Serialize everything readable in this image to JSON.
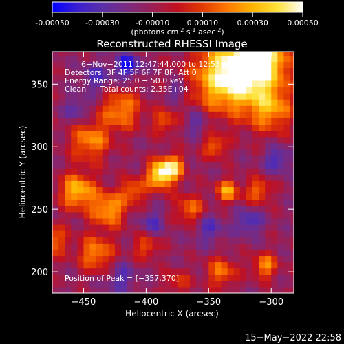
{
  "colorbar": {
    "ticks": [
      "-0.00050",
      "-0.00030",
      "-0.00010",
      "0.00010",
      "0.00030",
      "0.00050"
    ],
    "tick_values": [
      -0.0005,
      -0.0003,
      -0.0001,
      0.0001,
      0.0003,
      0.0005
    ],
    "units_main": "(photons cm",
    "units_sup1": "-2",
    "units_mid": " s",
    "units_sup2": "-1",
    "units_end": " asec",
    "units_sup3": "-2",
    "units_close": ")",
    "colormap": [
      "#0000ff",
      "#3a1fd0",
      "#5a2fa8",
      "#7a2a80",
      "#9a1f55",
      "#c21020",
      "#e23a00",
      "#ff7a00",
      "#ffb400",
      "#ffe23a",
      "#ffffff"
    ]
  },
  "chart_data": {
    "type": "heatmap",
    "title": "Reconstructed RHESSI Image",
    "xlabel": "Heliocentric X (arcsec)",
    "ylabel": "Heliocentric Y (arcsec)",
    "xlim": [
      -475,
      -282
    ],
    "ylim": [
      183,
      376
    ],
    "xticks": [
      -450,
      -400,
      -350,
      -300
    ],
    "yticks": [
      200,
      250,
      300,
      350
    ],
    "xtick_labels": [
      "−450",
      "−400",
      "−350",
      "−300"
    ],
    "ytick_labels": [
      "200",
      "250",
      "300",
      "350"
    ],
    "value_range": [
      -0.0005,
      0.0005
    ],
    "peak": [
      -357,
      370
    ],
    "annotations": {
      "time": "6−Nov−2011 12:47:44.000 to 12:53:44.000",
      "detectors": "Detectors: 3F 4F 5F 6F 7F 8F, Att 0",
      "energy": "Energy Range: 25.0 − 50.0 keV",
      "method": "Clean",
      "counts": "Total counts: 2.35E+04",
      "peak_text": "Position of Peak = [−357,370]"
    },
    "blobs": [
      {
        "x": -335,
        "y": 355,
        "r": 28,
        "v": 0.00055
      },
      {
        "x": -310,
        "y": 370,
        "r": 24,
        "v": 0.0006
      },
      {
        "x": -300,
        "y": 330,
        "r": 18,
        "v": 0.00035
      },
      {
        "x": -388,
        "y": 278,
        "r": 11,
        "v": 0.0006
      },
      {
        "x": -378,
        "y": 285,
        "r": 9,
        "v": 0.00035
      },
      {
        "x": -420,
        "y": 330,
        "r": 16,
        "v": 0.00035
      },
      {
        "x": -445,
        "y": 305,
        "r": 16,
        "v": 0.00035
      },
      {
        "x": -455,
        "y": 265,
        "r": 14,
        "v": 0.00045
      },
      {
        "x": -430,
        "y": 250,
        "r": 14,
        "v": 0.0004
      },
      {
        "x": -410,
        "y": 265,
        "r": 10,
        "v": 0.0003
      },
      {
        "x": -440,
        "y": 215,
        "r": 14,
        "v": 0.00035
      },
      {
        "x": -475,
        "y": 225,
        "r": 12,
        "v": 0.0003
      },
      {
        "x": -400,
        "y": 220,
        "r": 10,
        "v": 0.00025
      },
      {
        "x": -365,
        "y": 250,
        "r": 12,
        "v": 0.0003
      },
      {
        "x": -335,
        "y": 265,
        "r": 9,
        "v": 0.0004
      },
      {
        "x": -345,
        "y": 300,
        "r": 9,
        "v": 0.0003
      },
      {
        "x": -310,
        "y": 265,
        "r": 10,
        "v": 0.0003
      },
      {
        "x": -340,
        "y": 200,
        "r": 12,
        "v": 0.0003
      },
      {
        "x": -305,
        "y": 205,
        "r": 10,
        "v": 0.00035
      },
      {
        "x": -375,
        "y": 192,
        "r": 10,
        "v": 0.0002
      },
      {
        "x": -385,
        "y": 320,
        "r": 10,
        "v": 0.00025
      },
      {
        "x": -440,
        "y": 355,
        "r": 12,
        "v": -0.0002
      },
      {
        "x": -415,
        "y": 365,
        "r": 10,
        "v": -0.00035
      },
      {
        "x": -455,
        "y": 330,
        "r": 10,
        "v": -0.0002
      },
      {
        "x": -360,
        "y": 320,
        "r": 10,
        "v": -0.0002
      },
      {
        "x": -395,
        "y": 240,
        "r": 10,
        "v": -0.0002
      },
      {
        "x": -350,
        "y": 235,
        "r": 12,
        "v": -0.0002
      },
      {
        "x": -318,
        "y": 240,
        "r": 10,
        "v": -0.00025
      },
      {
        "x": -295,
        "y": 290,
        "r": 10,
        "v": -0.00025
      },
      {
        "x": -420,
        "y": 195,
        "r": 12,
        "v": -0.0002
      },
      {
        "x": -375,
        "y": 345,
        "r": 8,
        "v": -0.0002
      }
    ]
  },
  "footer": {
    "date": "15−May−2022 22:58"
  }
}
